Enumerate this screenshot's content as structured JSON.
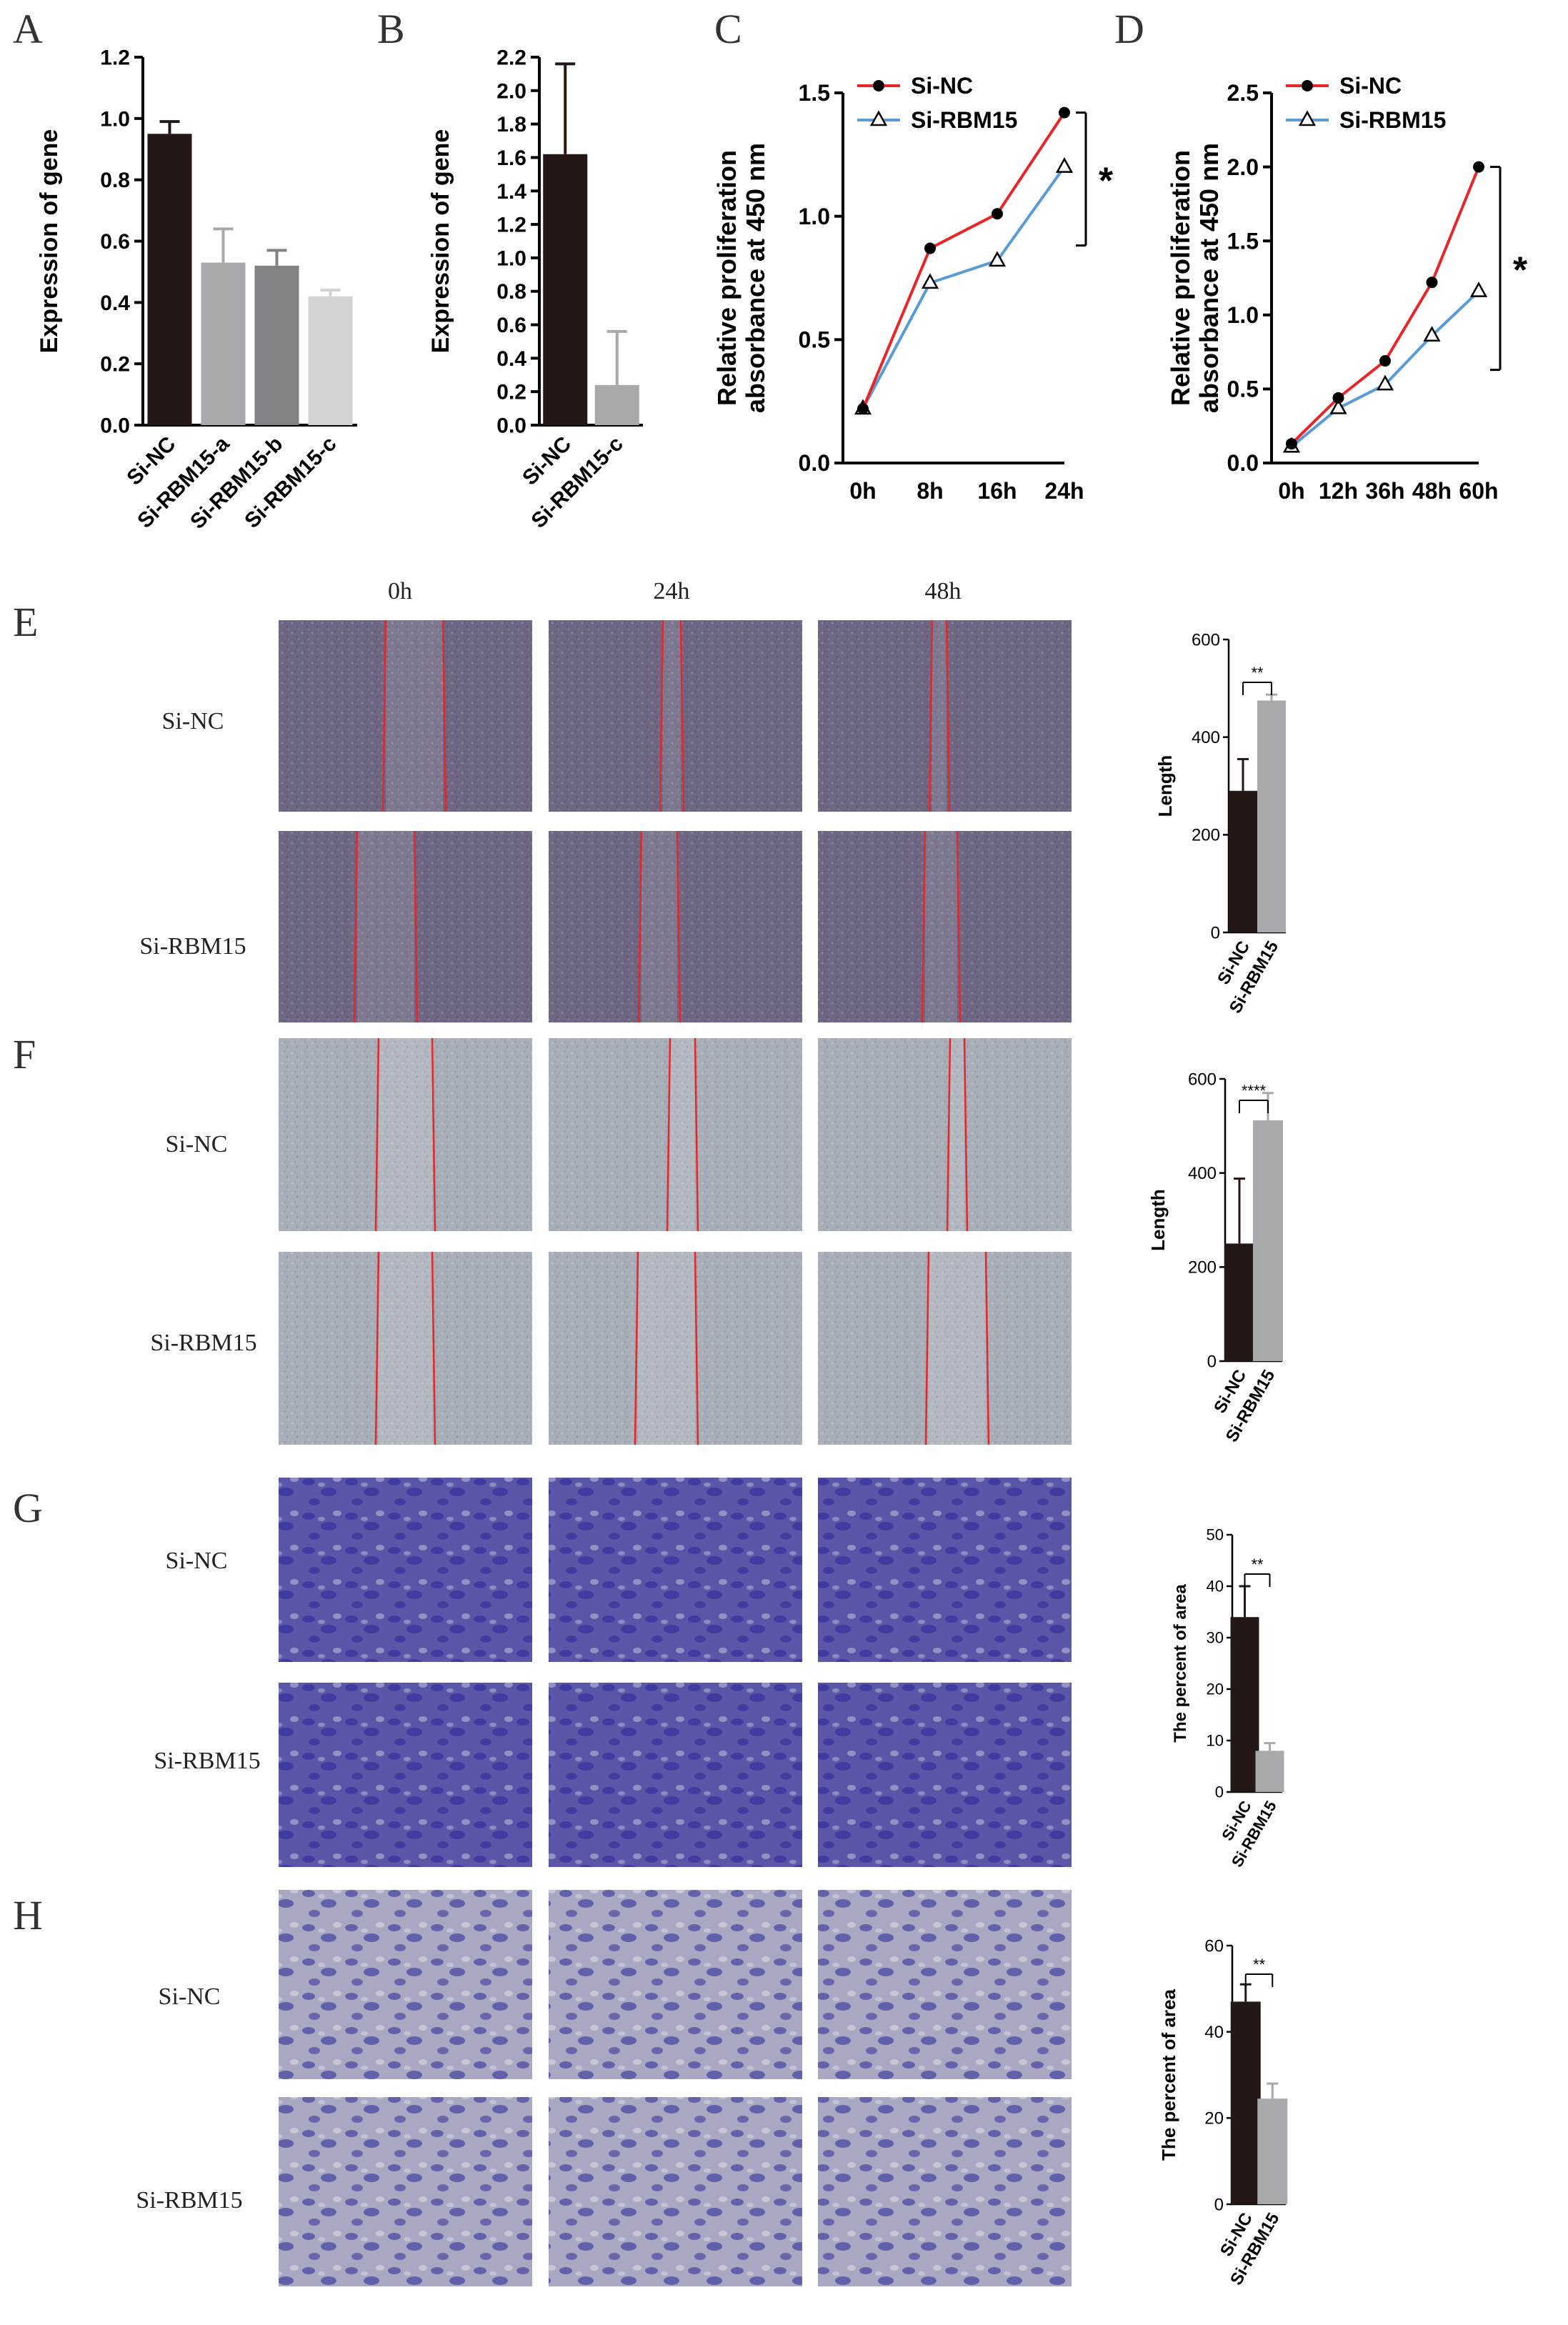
{
  "panels": {
    "A": "A",
    "B": "B",
    "C": "C",
    "D": "D",
    "E": "E",
    "F": "F",
    "G": "G",
    "H": "H"
  },
  "columns": [
    "0h",
    "24h",
    "48h"
  ],
  "row_labels": {
    "E": [
      "Si-NC",
      "Si-RBM15"
    ],
    "F": [
      "Si-NC",
      "Si-RBM15"
    ],
    "G": [
      "Si-NC",
      "Si-RBM15"
    ],
    "H": [
      "Si-NC",
      "Si-RBM15"
    ]
  },
  "micrograph_colors": {
    "E": "#6e6682",
    "F": "#a8aeb8",
    "G": "#5a56a8",
    "H": "#a8a8c2"
  },
  "chart_data": [
    {
      "id": "A",
      "type": "bar",
      "categories": [
        "Si-NC",
        "Si-RBM15-a",
        "Si-RBM15-b",
        "Si-RBM15-c"
      ],
      "values": [
        0.95,
        0.53,
        0.52,
        0.42
      ],
      "errors": [
        0.04,
        0.11,
        0.05,
        0.02
      ],
      "colors": [
        "#231815",
        "#a7a9ac",
        "#808285",
        "#d1d3d4"
      ],
      "ylabel": "Expression of gene",
      "ylim": [
        0,
        1.2
      ],
      "yticks": [
        "0.0",
        "0.2",
        "0.4",
        "0.6",
        "0.8",
        "1.0",
        "1.2"
      ]
    },
    {
      "id": "B",
      "type": "bar",
      "categories": [
        "Si-NC",
        "Si-RBM15-c"
      ],
      "values": [
        1.62,
        0.24
      ],
      "errors": [
        0.54,
        0.32
      ],
      "colors": [
        "#231815",
        "#a7a9ac"
      ],
      "ylabel": "Expression of gene",
      "ylim": [
        0,
        2.2
      ],
      "yticks": [
        "0.0",
        "0.2",
        "0.4",
        "0.6",
        "0.8",
        "1.0",
        "1.2",
        "1.4",
        "1.6",
        "1.8",
        "2.0",
        "2.2"
      ]
    },
    {
      "id": "C",
      "type": "line",
      "x": [
        "0h",
        "8h",
        "16h",
        "24h"
      ],
      "series": [
        {
          "name": "Si-NC",
          "values": [
            0.22,
            0.87,
            1.01,
            1.42
          ],
          "color": "#e8262a",
          "marker": "circle"
        },
        {
          "name": "Si-RBM15",
          "values": [
            0.22,
            0.73,
            0.82,
            1.2
          ],
          "color": "#5b9bd5",
          "marker": "triangle"
        }
      ],
      "ylabel": "Relative proliferation absorbance at 450 nm",
      "ylim": [
        0,
        1.5
      ],
      "yticks": [
        "0.0",
        "0.5",
        "1.0",
        "1.5"
      ],
      "significance": "*",
      "legend": "top-left"
    },
    {
      "id": "D",
      "type": "line",
      "x": [
        "0h",
        "12h",
        "36h",
        "48h",
        "60h"
      ],
      "series": [
        {
          "name": "Si-NC",
          "values": [
            0.13,
            0.44,
            0.69,
            1.22,
            2.0
          ],
          "color": "#e8262a",
          "marker": "circle"
        },
        {
          "name": "Si-RBM15",
          "values": [
            0.11,
            0.37,
            0.53,
            0.86,
            1.16
          ],
          "color": "#5b9bd5",
          "marker": "triangle"
        }
      ],
      "ylabel": "Relative proliferation absorbance at 450 nm",
      "ylim": [
        0,
        2.5
      ],
      "yticks": [
        "0.0",
        "0.5",
        "1.0",
        "1.5",
        "2.0",
        "2.5"
      ],
      "significance": "*",
      "legend": "top-left"
    },
    {
      "id": "E",
      "type": "bar",
      "categories": [
        "Si-NC",
        "Si-RBM15"
      ],
      "values": [
        290,
        475
      ],
      "errors": [
        65,
        12
      ],
      "colors": [
        "#231815",
        "#a7a9ac"
      ],
      "ylabel": "Length",
      "ylim": [
        0,
        600
      ],
      "yticks": [
        "0",
        "200",
        "400",
        "600"
      ],
      "significance": "**"
    },
    {
      "id": "F",
      "type": "bar",
      "categories": [
        "Si-NC",
        "Si-RBM15"
      ],
      "values": [
        250,
        512
      ],
      "errors": [
        138,
        58
      ],
      "colors": [
        "#231815",
        "#a7a9ac"
      ],
      "ylabel": "Length",
      "ylim": [
        0,
        600
      ],
      "yticks": [
        "0",
        "200",
        "400",
        "600"
      ],
      "significance": "****"
    },
    {
      "id": "G",
      "type": "bar",
      "categories": [
        "Si-NC",
        "Si-RBM15"
      ],
      "values": [
        34,
        8
      ],
      "errors": [
        6,
        1.5
      ],
      "colors": [
        "#231815",
        "#a7a9ac"
      ],
      "ylabel": "The percent of area",
      "ylim": [
        0,
        50
      ],
      "yticks": [
        "0",
        "10",
        "20",
        "30",
        "40",
        "50"
      ],
      "significance": "**"
    },
    {
      "id": "H",
      "type": "bar",
      "categories": [
        "Si-NC",
        "Si-RBM15"
      ],
      "values": [
        47,
        24.5
      ],
      "errors": [
        4,
        3.5
      ],
      "colors": [
        "#231815",
        "#a7a9ac"
      ],
      "ylabel": "The percent of area",
      "ylim": [
        0,
        60
      ],
      "yticks": [
        "0",
        "20",
        "40",
        "60"
      ],
      "significance": "**"
    }
  ]
}
